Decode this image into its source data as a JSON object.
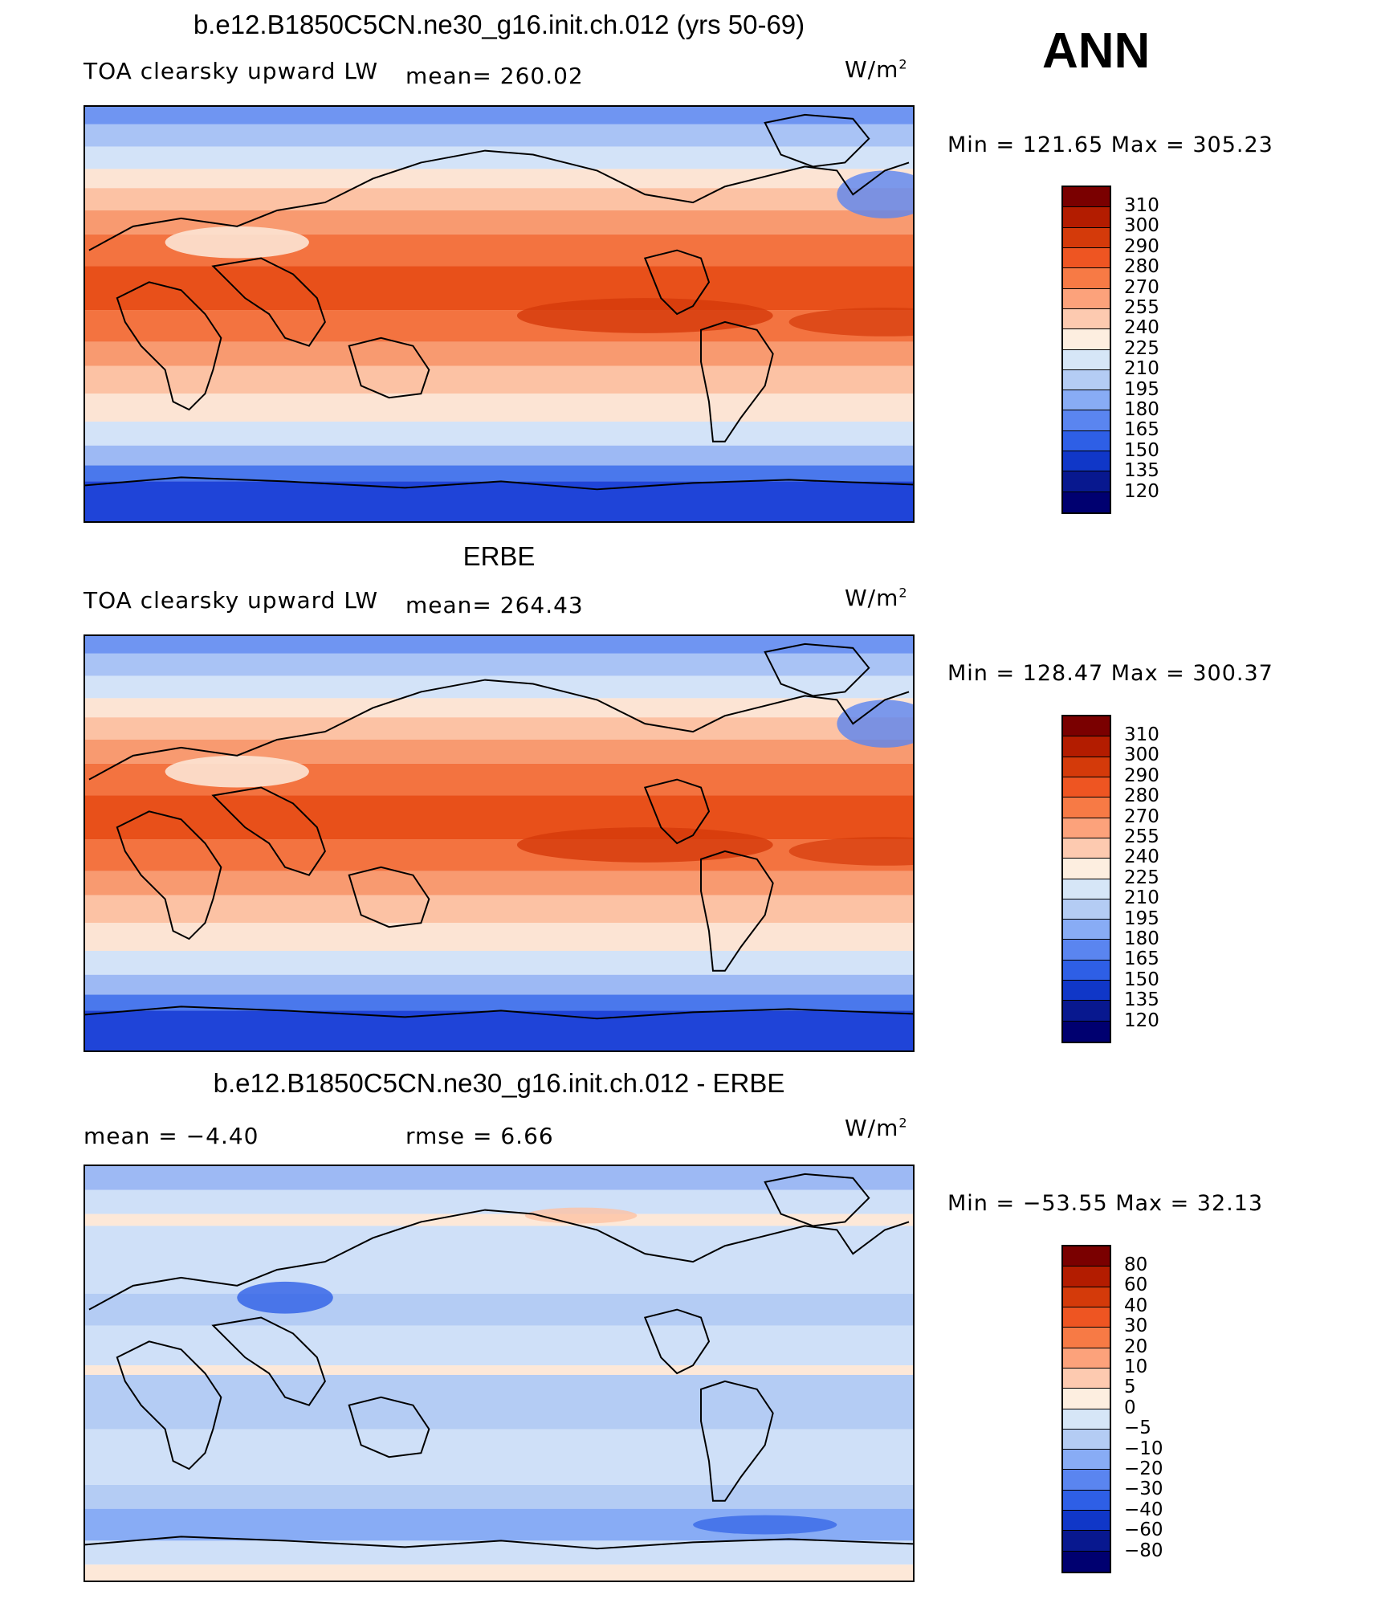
{
  "season": "ANN",
  "panels": [
    {
      "title": "b.e12.B1850C5CN.ne30_g16.init.ch.012 (yrs 50-69)",
      "left_label": "TOA clearsky upward LW",
      "center_label": "mean=  260.02",
      "units": "W/m",
      "units_sup": "2",
      "minmax": "Min  =  121.65  Max  =  305.23",
      "colorbar_labels": [
        "310",
        "300",
        "290",
        "280",
        "270",
        "255",
        "240",
        "225",
        "210",
        "195",
        "180",
        "165",
        "150",
        "135",
        "120"
      ],
      "colorbar_colors": [
        "#7a0000",
        "#b31c00",
        "#d43a0a",
        "#ee5522",
        "#f77a45",
        "#fca27b",
        "#fdcab0",
        "#fdeee0",
        "#d6e6f7",
        "#b4ccf4",
        "#88acf5",
        "#5a85f0",
        "#2e5fe6",
        "#1037c8",
        "#08188f",
        "#000070"
      ],
      "map_type": "absolute"
    },
    {
      "title": "ERBE",
      "left_label": "TOA clearsky upward LW",
      "center_label": "mean=  264.43",
      "units": "W/m",
      "units_sup": "2",
      "minmax": "Min  =  128.47  Max  =  300.37",
      "colorbar_labels": [
        "310",
        "300",
        "290",
        "280",
        "270",
        "255",
        "240",
        "225",
        "210",
        "195",
        "180",
        "165",
        "150",
        "135",
        "120"
      ],
      "colorbar_colors": [
        "#7a0000",
        "#b31c00",
        "#d43a0a",
        "#ee5522",
        "#f77a45",
        "#fca27b",
        "#fdcab0",
        "#fdeee0",
        "#d6e6f7",
        "#b4ccf4",
        "#88acf5",
        "#5a85f0",
        "#2e5fe6",
        "#1037c8",
        "#08188f",
        "#000070"
      ],
      "map_type": "absolute"
    },
    {
      "title": "b.e12.B1850C5CN.ne30_g16.init.ch.012 - ERBE",
      "left_label": "mean  =     −4.40",
      "center_label": "rmse  =     6.66",
      "units": "W/m",
      "units_sup": "2",
      "minmax": "Min  =  −53.55  Max  =    32.13",
      "colorbar_labels": [
        "80",
        "60",
        "40",
        "30",
        "20",
        "10",
        "5",
        "0",
        "−5",
        "−10",
        "−20",
        "−30",
        "−40",
        "−60",
        "−80"
      ],
      "colorbar_colors": [
        "#7a0000",
        "#b31c00",
        "#d43a0a",
        "#ee5522",
        "#f77a45",
        "#fca27b",
        "#fdcab0",
        "#fdeee0",
        "#d6e6f7",
        "#b4ccf4",
        "#88acf5",
        "#5a85f0",
        "#2e5fe6",
        "#1037c8",
        "#08188f",
        "#000070"
      ],
      "map_type": "difference"
    }
  ]
}
